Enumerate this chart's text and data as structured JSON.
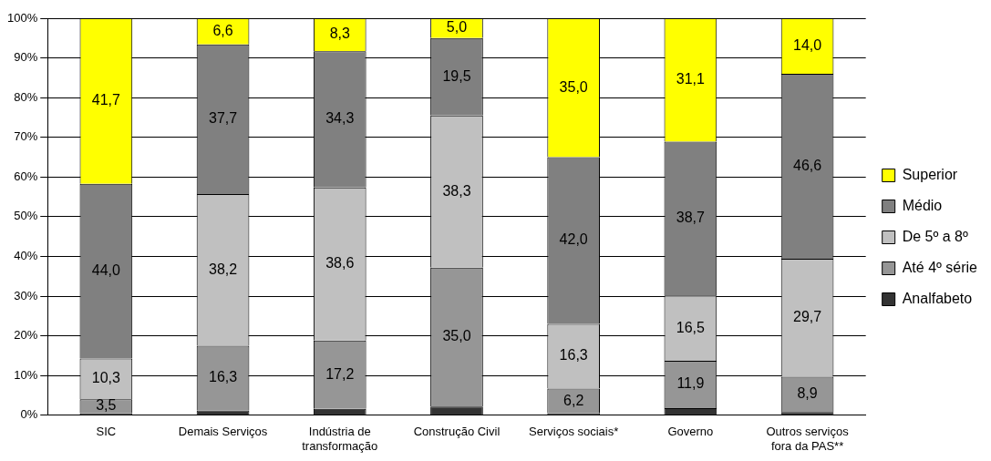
{
  "chart_data": {
    "type": "bar",
    "stacked": true,
    "categories": [
      "SIC",
      "Demais Serviços",
      "Indústria de transformação",
      "Construção Civil",
      "Serviços sociais*",
      "Governo",
      "Outros serviços fora da PAS**"
    ],
    "series": [
      {
        "name": "Analfabeto",
        "color": "#333333",
        "values": [
          0.5,
          1.2,
          1.6,
          2.2,
          0.5,
          1.8,
          0.8
        ],
        "value_labels": [
          null,
          null,
          null,
          null,
          null,
          null,
          null
        ]
      },
      {
        "name": "Até 4º série",
        "color": "#969696",
        "values": [
          3.5,
          16.3,
          17.2,
          35.0,
          6.2,
          11.9,
          8.9
        ],
        "value_labels": [
          "3,5",
          "16,3",
          "17,2",
          "35,0",
          "6,2",
          "11,9",
          "8,9"
        ]
      },
      {
        "name": "De 5º a 8º",
        "color": "#c0c0c0",
        "values": [
          10.3,
          38.2,
          38.6,
          38.3,
          16.3,
          16.5,
          29.7
        ],
        "value_labels": [
          "10,3",
          "38,2",
          "38,6",
          "38,3",
          "16,3",
          "16,5",
          "29,7"
        ]
      },
      {
        "name": "Médio",
        "color": "#808080",
        "values": [
          44.0,
          37.7,
          34.3,
          19.5,
          42.0,
          38.7,
          46.6
        ],
        "value_labels": [
          "44,0",
          "37,7",
          "34,3",
          "19,5",
          "42,0",
          "38,7",
          "46,6"
        ]
      },
      {
        "name": "Superior",
        "color": "#ffff00",
        "values": [
          41.7,
          6.6,
          8.3,
          5.0,
          35.0,
          31.1,
          14.0
        ],
        "value_labels": [
          "41,7",
          "6,6",
          "8,3",
          "5,0",
          "35,0",
          "31,1",
          "14,0"
        ]
      }
    ],
    "ylim": [
      0,
      100
    ],
    "yticks": [
      {
        "value": 0,
        "label": "0%"
      },
      {
        "value": 10,
        "label": "10%"
      },
      {
        "value": 20,
        "label": "20%"
      },
      {
        "value": 30,
        "label": "30%"
      },
      {
        "value": 40,
        "label": "40%"
      },
      {
        "value": 50,
        "label": "50%"
      },
      {
        "value": 60,
        "label": "60%"
      },
      {
        "value": 70,
        "label": "70%"
      },
      {
        "value": 80,
        "label": "80%"
      },
      {
        "value": 90,
        "label": "90%"
      },
      {
        "value": 100,
        "label": "100%"
      }
    ],
    "grid": "y",
    "legend": "right"
  }
}
